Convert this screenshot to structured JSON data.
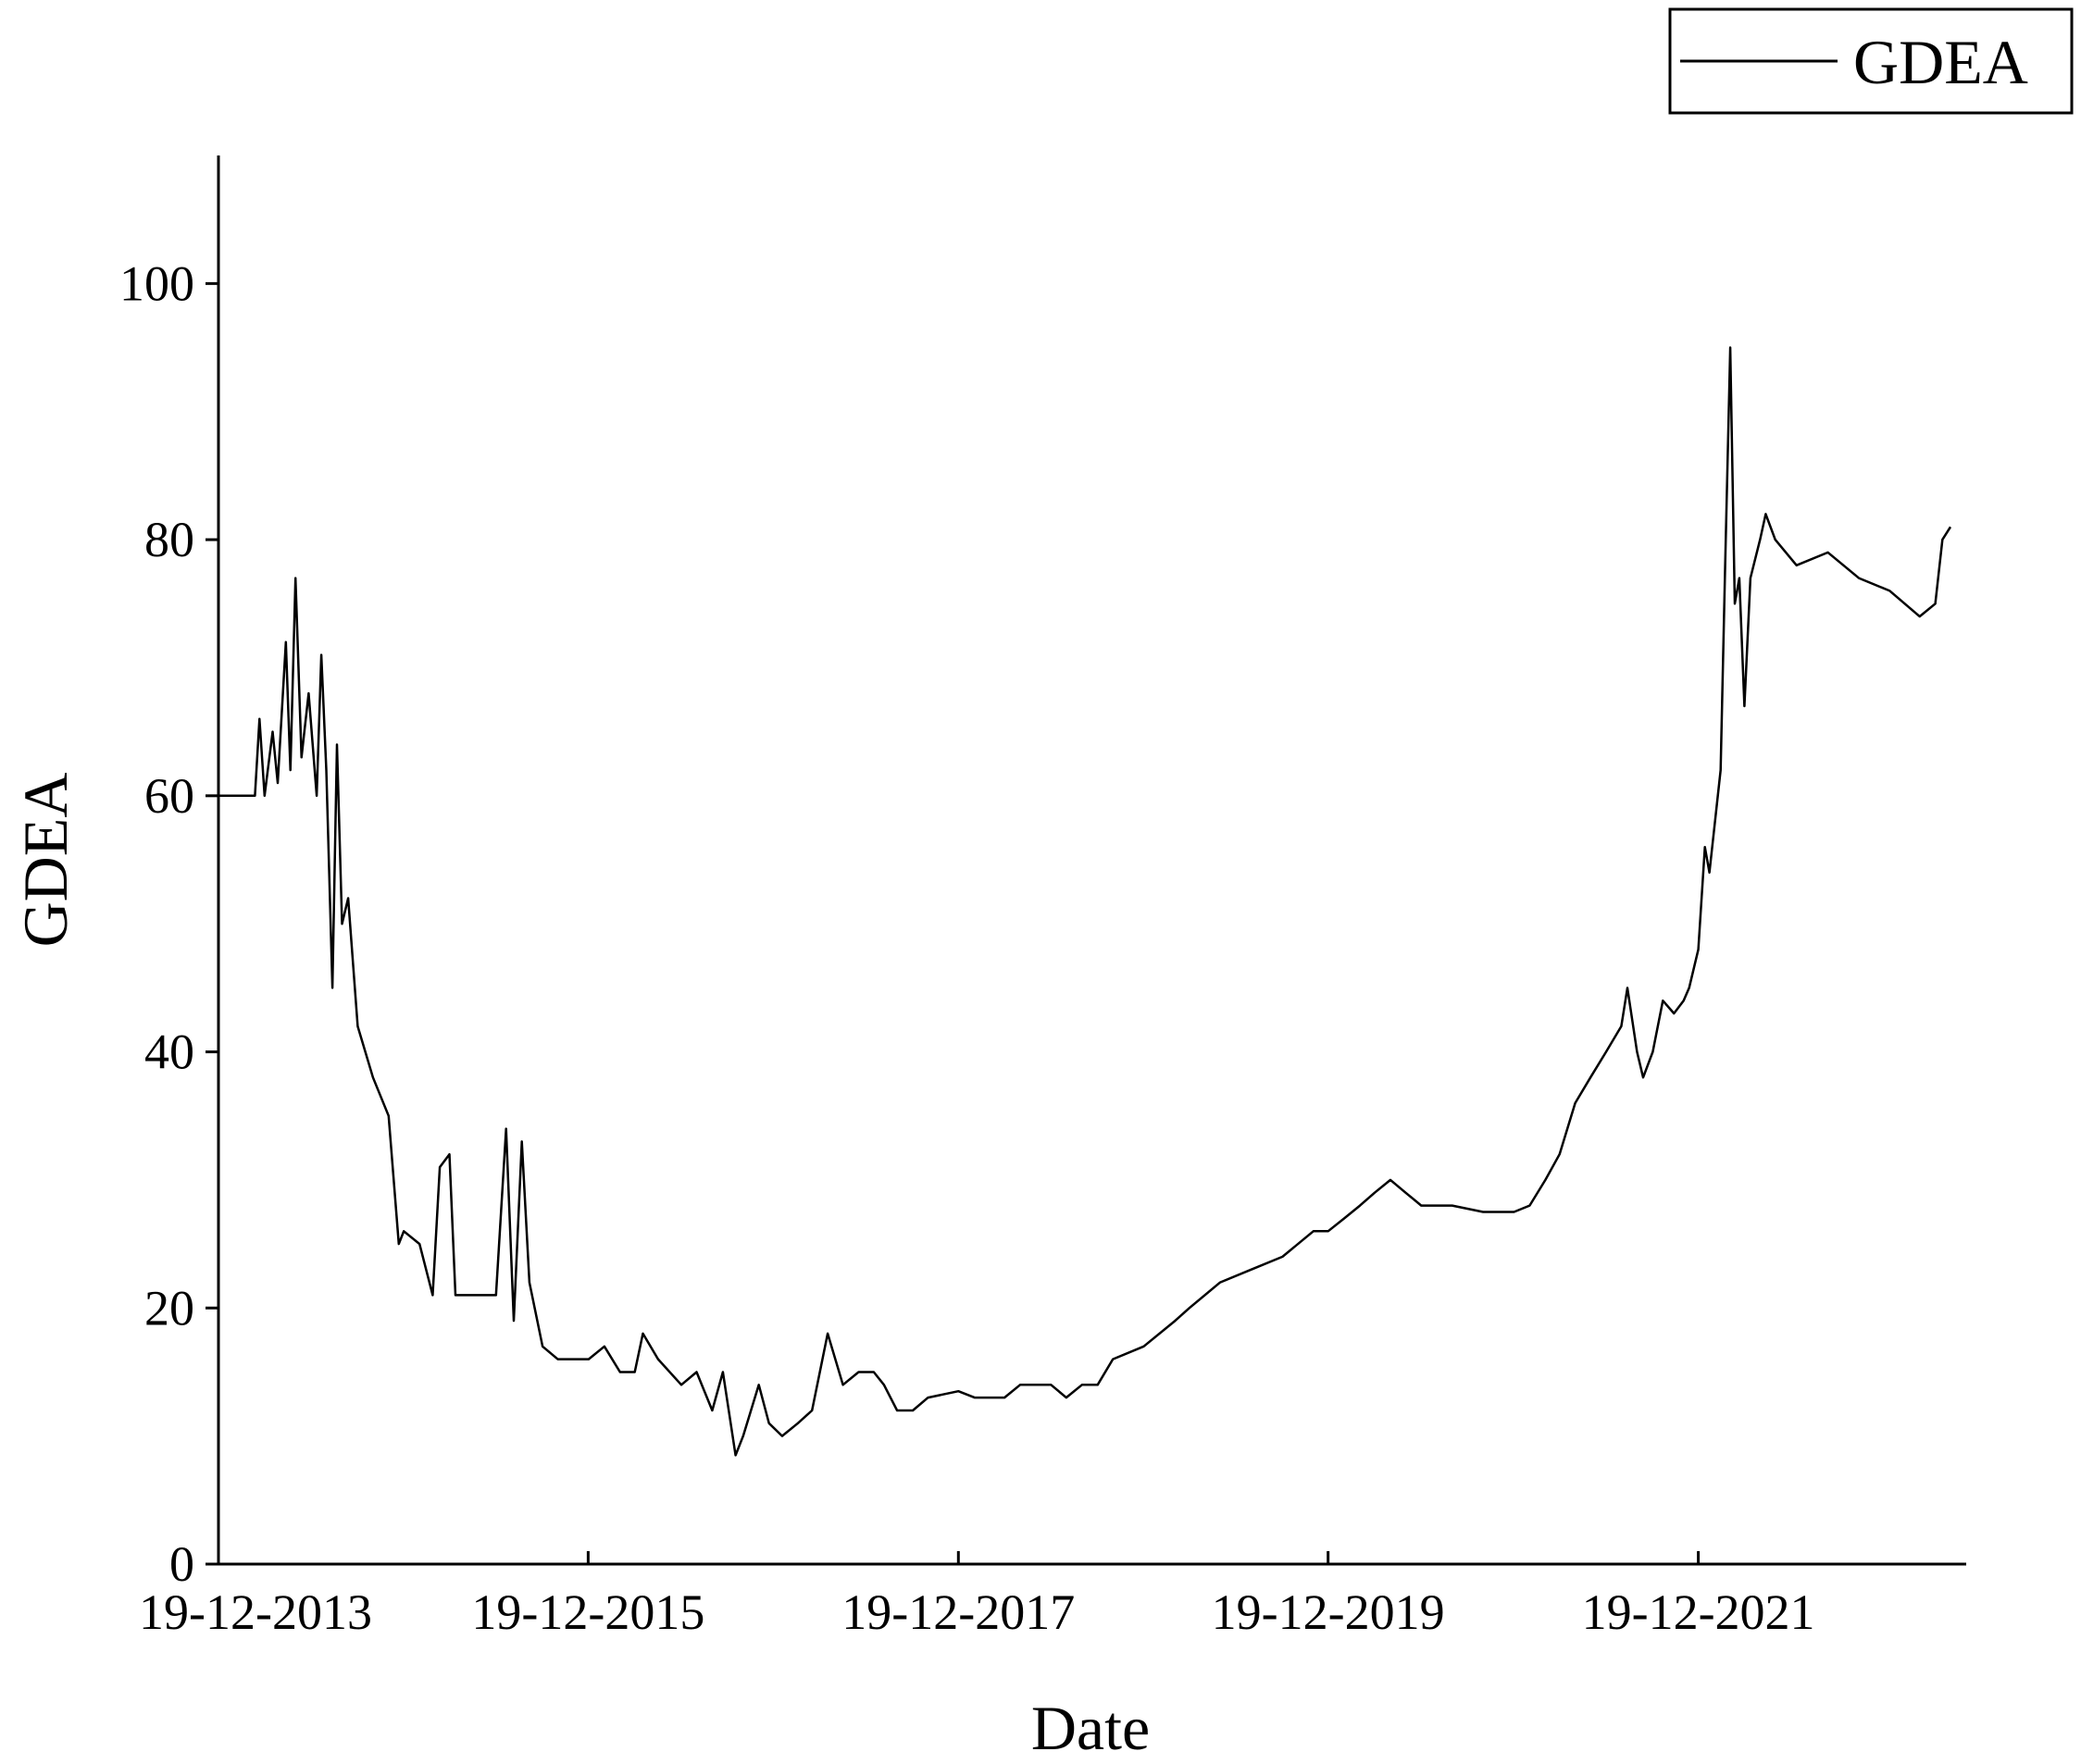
{
  "chart_data": {
    "type": "line",
    "xlabel": "Date",
    "ylabel": "GDEA",
    "ylim": [
      0,
      110
    ],
    "xlim": [
      "2013-12-19",
      "2023-06-01"
    ],
    "y_ticks": [
      0,
      20,
      40,
      60,
      80,
      100
    ],
    "x_ticks": [
      {
        "date": "2013-12-19",
        "label": "19-12-2013"
      },
      {
        "date": "2015-12-19",
        "label": "19-12-2015"
      },
      {
        "date": "2017-12-19",
        "label": "19-12-2017"
      },
      {
        "date": "2019-12-19",
        "label": "19-12-2019"
      },
      {
        "date": "2021-12-19",
        "label": "19-12-2021"
      }
    ],
    "grid": false,
    "legend_position": "top-right",
    "series": [
      {
        "name": "GDEA",
        "color": "#000000",
        "points": [
          [
            "2013-12-19",
            60
          ],
          [
            "2014-03-01",
            60
          ],
          [
            "2014-03-10",
            66
          ],
          [
            "2014-03-20",
            60
          ],
          [
            "2014-04-05",
            65
          ],
          [
            "2014-04-15",
            61
          ],
          [
            "2014-05-01",
            72
          ],
          [
            "2014-05-10",
            62
          ],
          [
            "2014-05-20",
            77
          ],
          [
            "2014-06-01",
            63
          ],
          [
            "2014-06-15",
            68
          ],
          [
            "2014-07-01",
            60
          ],
          [
            "2014-07-10",
            71
          ],
          [
            "2014-07-20",
            62
          ],
          [
            "2014-08-01",
            45
          ],
          [
            "2014-08-10",
            64
          ],
          [
            "2014-08-20",
            50
          ],
          [
            "2014-09-01",
            52
          ],
          [
            "2014-09-20",
            42
          ],
          [
            "2014-10-20",
            38
          ],
          [
            "2014-11-20",
            35
          ],
          [
            "2014-12-10",
            25
          ],
          [
            "2014-12-20",
            26
          ],
          [
            "2015-01-20",
            25
          ],
          [
            "2015-02-15",
            21
          ],
          [
            "2015-03-01",
            31
          ],
          [
            "2015-03-20",
            32
          ],
          [
            "2015-04-01",
            21
          ],
          [
            "2015-05-01",
            21
          ],
          [
            "2015-06-20",
            21
          ],
          [
            "2015-07-10",
            34
          ],
          [
            "2015-07-25",
            19
          ],
          [
            "2015-08-10",
            33
          ],
          [
            "2015-08-25",
            22
          ],
          [
            "2015-09-20",
            17
          ],
          [
            "2015-10-20",
            16
          ],
          [
            "2015-12-20",
            16
          ],
          [
            "2016-01-20",
            17
          ],
          [
            "2016-02-20",
            15
          ],
          [
            "2016-03-20",
            15
          ],
          [
            "2016-04-05",
            18
          ],
          [
            "2016-05-05",
            16
          ],
          [
            "2016-06-20",
            14
          ],
          [
            "2016-07-20",
            15
          ],
          [
            "2016-08-20",
            12
          ],
          [
            "2016-09-10",
            15
          ],
          [
            "2016-10-05",
            8.5
          ],
          [
            "2016-10-20",
            10
          ],
          [
            "2016-11-20",
            14
          ],
          [
            "2016-12-10",
            11
          ],
          [
            "2017-01-05",
            10
          ],
          [
            "2017-02-05",
            11
          ],
          [
            "2017-03-05",
            12
          ],
          [
            "2017-04-05",
            18
          ],
          [
            "2017-05-05",
            14
          ],
          [
            "2017-06-05",
            15
          ],
          [
            "2017-07-05",
            15
          ],
          [
            "2017-07-25",
            14
          ],
          [
            "2017-08-20",
            12
          ],
          [
            "2017-09-20",
            12
          ],
          [
            "2017-10-20",
            13
          ],
          [
            "2017-12-19",
            13.5
          ],
          [
            "2018-01-20",
            13
          ],
          [
            "2018-03-20",
            13
          ],
          [
            "2018-04-20",
            14
          ],
          [
            "2018-06-20",
            14
          ],
          [
            "2018-07-20",
            13
          ],
          [
            "2018-08-20",
            14
          ],
          [
            "2018-09-20",
            14
          ],
          [
            "2018-10-20",
            16
          ],
          [
            "2018-12-20",
            17
          ],
          [
            "2019-02-20",
            19
          ],
          [
            "2019-03-20",
            20
          ],
          [
            "2019-05-20",
            22
          ],
          [
            "2019-07-20",
            23
          ],
          [
            "2019-09-20",
            24
          ],
          [
            "2019-11-20",
            26
          ],
          [
            "2019-12-19",
            26
          ],
          [
            "2020-01-20",
            27
          ],
          [
            "2020-02-20",
            28
          ],
          [
            "2020-03-20",
            29
          ],
          [
            "2020-04-20",
            30
          ],
          [
            "2020-05-20",
            29
          ],
          [
            "2020-06-20",
            28
          ],
          [
            "2020-08-20",
            28
          ],
          [
            "2020-10-20",
            27.5
          ],
          [
            "2020-12-20",
            27.5
          ],
          [
            "2021-01-20",
            28
          ],
          [
            "2021-02-20",
            30
          ],
          [
            "2021-03-20",
            32
          ],
          [
            "2021-04-20",
            36
          ],
          [
            "2021-05-20",
            38
          ],
          [
            "2021-06-20",
            40
          ],
          [
            "2021-07-20",
            42
          ],
          [
            "2021-08-01",
            45
          ],
          [
            "2021-08-20",
            40
          ],
          [
            "2021-09-01",
            38
          ],
          [
            "2021-09-20",
            40
          ],
          [
            "2021-10-10",
            44
          ],
          [
            "2021-11-01",
            43
          ],
          [
            "2021-11-20",
            44
          ],
          [
            "2021-12-01",
            45
          ],
          [
            "2021-12-19",
            48
          ],
          [
            "2022-01-01",
            56
          ],
          [
            "2022-01-10",
            54
          ],
          [
            "2022-02-01",
            62
          ],
          [
            "2022-02-10",
            78
          ],
          [
            "2022-02-20",
            95
          ],
          [
            "2022-03-01",
            75
          ],
          [
            "2022-03-10",
            77
          ],
          [
            "2022-03-20",
            67
          ],
          [
            "2022-04-01",
            77
          ],
          [
            "2022-04-20",
            80
          ],
          [
            "2022-05-01",
            82
          ],
          [
            "2022-05-20",
            80
          ],
          [
            "2022-07-01",
            78
          ],
          [
            "2022-09-01",
            79
          ],
          [
            "2022-11-01",
            77
          ],
          [
            "2023-01-01",
            76
          ],
          [
            "2023-03-01",
            74
          ],
          [
            "2023-04-01",
            75
          ],
          [
            "2023-04-15",
            80
          ],
          [
            "2023-05-01",
            81
          ]
        ]
      }
    ]
  }
}
